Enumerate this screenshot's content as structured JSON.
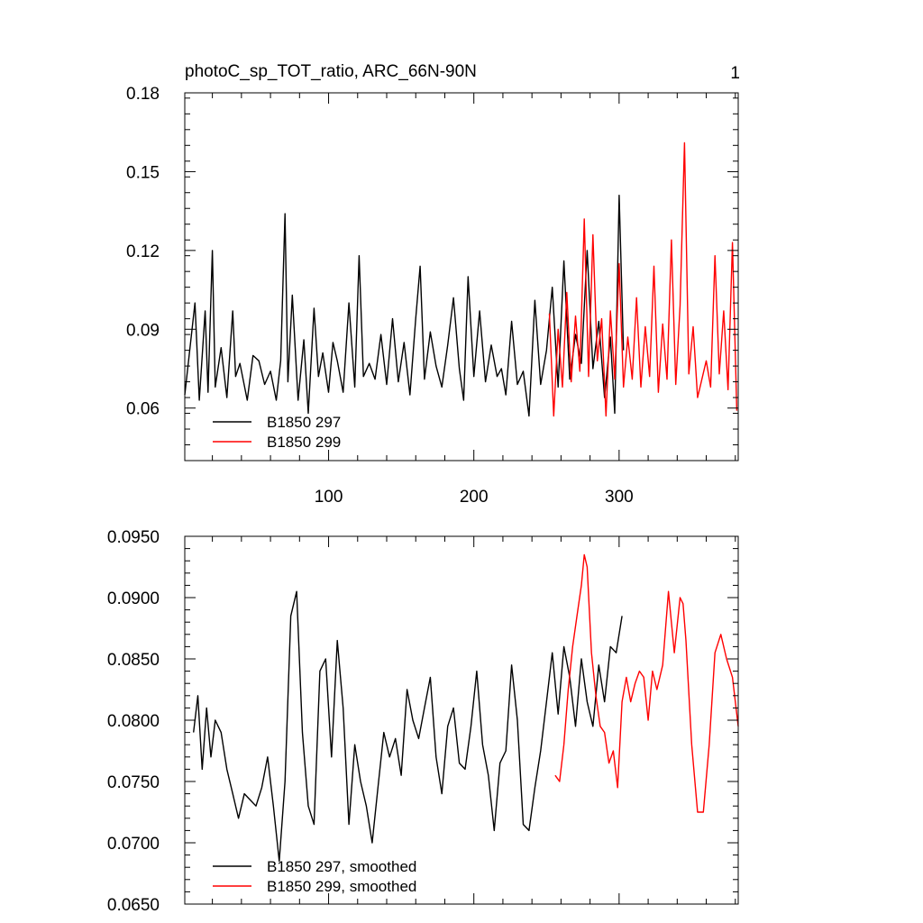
{
  "chart_data": [
    {
      "type": "line",
      "title": "photoC_sp_TOT_ratio, ARC_66N-90N",
      "right_title": "1",
      "xlim": [
        1,
        382
      ],
      "ylim": [
        0.04,
        0.18
      ],
      "xticks": [
        100,
        200,
        300
      ],
      "xtick_labels": [
        "100",
        "200",
        "300"
      ],
      "yticks": [
        0.06,
        0.09,
        0.12,
        0.15,
        0.18
      ],
      "ytick_labels": [
        "0.06",
        "0.09",
        "0.12",
        "0.15",
        "0.18"
      ],
      "grid": false,
      "legend_position": "bottom-left",
      "series": [
        {
          "name": "B1850 297",
          "color": "#000000",
          "x": [
            1,
            8,
            11,
            15,
            17,
            20,
            22,
            26,
            30,
            34,
            36,
            39,
            44,
            48,
            52,
            56,
            60,
            64,
            67,
            70,
            72,
            75,
            79,
            83,
            86,
            90,
            93,
            96,
            100,
            103,
            106,
            110,
            114,
            118,
            121,
            124,
            128,
            132,
            136,
            140,
            144,
            148,
            152,
            156,
            160,
            163,
            166,
            170,
            174,
            178,
            182,
            186,
            190,
            193,
            196,
            200,
            204,
            208,
            212,
            216,
            219,
            222,
            226,
            230,
            234,
            238,
            242,
            246,
            250,
            254,
            258,
            262,
            266,
            270,
            274,
            278,
            282,
            286,
            290,
            294,
            297,
            300,
            303
          ],
          "y": [
            0.065,
            0.1,
            0.063,
            0.097,
            0.066,
            0.12,
            0.068,
            0.083,
            0.064,
            0.097,
            0.072,
            0.077,
            0.063,
            0.08,
            0.078,
            0.069,
            0.074,
            0.063,
            0.078,
            0.134,
            0.07,
            0.103,
            0.063,
            0.086,
            0.058,
            0.098,
            0.072,
            0.081,
            0.066,
            0.085,
            0.078,
            0.066,
            0.1,
            0.068,
            0.118,
            0.072,
            0.077,
            0.071,
            0.088,
            0.069,
            0.094,
            0.07,
            0.085,
            0.065,
            0.094,
            0.114,
            0.071,
            0.089,
            0.076,
            0.068,
            0.084,
            0.102,
            0.075,
            0.063,
            0.11,
            0.072,
            0.097,
            0.07,
            0.084,
            0.072,
            0.075,
            0.065,
            0.093,
            0.069,
            0.074,
            0.057,
            0.101,
            0.069,
            0.082,
            0.106,
            0.068,
            0.116,
            0.071,
            0.088,
            0.077,
            0.12,
            0.075,
            0.093,
            0.064,
            0.087,
            0.058,
            0.141,
            0.082
          ]
        },
        {
          "name": "B1850 299",
          "color": "#ff0000",
          "x": [
            252,
            255,
            258,
            261,
            264,
            267,
            270,
            273,
            276,
            279,
            282,
            285,
            288,
            291,
            294,
            297,
            300,
            303,
            306,
            309,
            312,
            315,
            318,
            321,
            324,
            327,
            330,
            333,
            336,
            339,
            342,
            345,
            348,
            351,
            354,
            357,
            360,
            363,
            366,
            369,
            372,
            375,
            378,
            381
          ],
          "y": [
            0.096,
            0.057,
            0.09,
            0.068,
            0.104,
            0.07,
            0.095,
            0.074,
            0.132,
            0.072,
            0.126,
            0.078,
            0.094,
            0.057,
            0.097,
            0.071,
            0.115,
            0.068,
            0.087,
            0.071,
            0.102,
            0.068,
            0.091,
            0.072,
            0.114,
            0.066,
            0.092,
            0.071,
            0.124,
            0.069,
            0.099,
            0.161,
            0.073,
            0.091,
            0.064,
            0.071,
            0.078,
            0.068,
            0.118,
            0.073,
            0.097,
            0.067,
            0.123,
            0.059
          ]
        }
      ]
    },
    {
      "type": "line",
      "xlim": [
        1,
        382
      ],
      "ylim": [
        0.065,
        0.095
      ],
      "xticks": [
        100,
        200,
        300
      ],
      "yticks": [
        0.065,
        0.07,
        0.075,
        0.08,
        0.085,
        0.09,
        0.095
      ],
      "ytick_labels": [
        "0.0650",
        "0.0700",
        "0.0750",
        "0.0800",
        "0.0850",
        "0.0900",
        "0.0950"
      ],
      "grid": false,
      "legend_position": "bottom-left",
      "series": [
        {
          "name": "B1850 297, smoothed",
          "color": "#000000",
          "x": [
            7,
            10,
            13,
            16,
            19,
            22,
            26,
            30,
            34,
            38,
            42,
            46,
            50,
            54,
            58,
            62,
            66,
            70,
            74,
            78,
            82,
            86,
            90,
            94,
            98,
            102,
            106,
            110,
            114,
            118,
            122,
            126,
            130,
            134,
            138,
            142,
            146,
            150,
            154,
            158,
            162,
            166,
            170,
            174,
            178,
            182,
            186,
            190,
            194,
            198,
            202,
            206,
            210,
            214,
            218,
            222,
            226,
            230,
            234,
            238,
            242,
            246,
            250,
            254,
            258,
            262,
            266,
            270,
            274,
            278,
            282,
            286,
            290,
            294,
            298,
            302
          ],
          "y": [
            0.079,
            0.082,
            0.076,
            0.081,
            0.077,
            0.08,
            0.079,
            0.076,
            0.074,
            0.072,
            0.074,
            0.0735,
            0.073,
            0.0745,
            0.077,
            0.073,
            0.0685,
            0.075,
            0.0885,
            0.0905,
            0.079,
            0.073,
            0.0715,
            0.084,
            0.085,
            0.077,
            0.0865,
            0.081,
            0.0715,
            0.078,
            0.075,
            0.073,
            0.07,
            0.0745,
            0.079,
            0.077,
            0.0785,
            0.0755,
            0.0825,
            0.08,
            0.0785,
            0.081,
            0.0835,
            0.077,
            0.074,
            0.0795,
            0.081,
            0.0765,
            0.076,
            0.0795,
            0.084,
            0.078,
            0.0755,
            0.071,
            0.0765,
            0.0775,
            0.0845,
            0.08,
            0.0715,
            0.071,
            0.0745,
            0.0775,
            0.0815,
            0.0855,
            0.0805,
            0.086,
            0.0835,
            0.0795,
            0.085,
            0.0815,
            0.0795,
            0.0845,
            0.0815,
            0.086,
            0.0855,
            0.0885
          ]
        },
        {
          "name": "B1850 299, smoothed",
          "color": "#ff0000",
          "x": [
            256,
            259,
            262,
            265,
            268,
            271,
            274,
            276,
            278,
            281,
            284,
            287,
            290,
            293,
            296,
            299,
            302,
            305,
            308,
            311,
            314,
            317,
            320,
            323,
            326,
            330,
            334,
            338,
            342,
            344,
            346,
            350,
            354,
            358,
            362,
            366,
            370,
            374,
            378,
            382
          ],
          "y": [
            0.0755,
            0.075,
            0.078,
            0.0825,
            0.086,
            0.0885,
            0.091,
            0.0935,
            0.0925,
            0.0855,
            0.082,
            0.0795,
            0.079,
            0.0765,
            0.0775,
            0.0745,
            0.0815,
            0.0835,
            0.0815,
            0.083,
            0.084,
            0.0835,
            0.08,
            0.084,
            0.0825,
            0.0845,
            0.0905,
            0.0855,
            0.09,
            0.0895,
            0.0865,
            0.078,
            0.0725,
            0.0725,
            0.078,
            0.0855,
            0.087,
            0.085,
            0.0835,
            0.0795
          ]
        }
      ]
    }
  ]
}
